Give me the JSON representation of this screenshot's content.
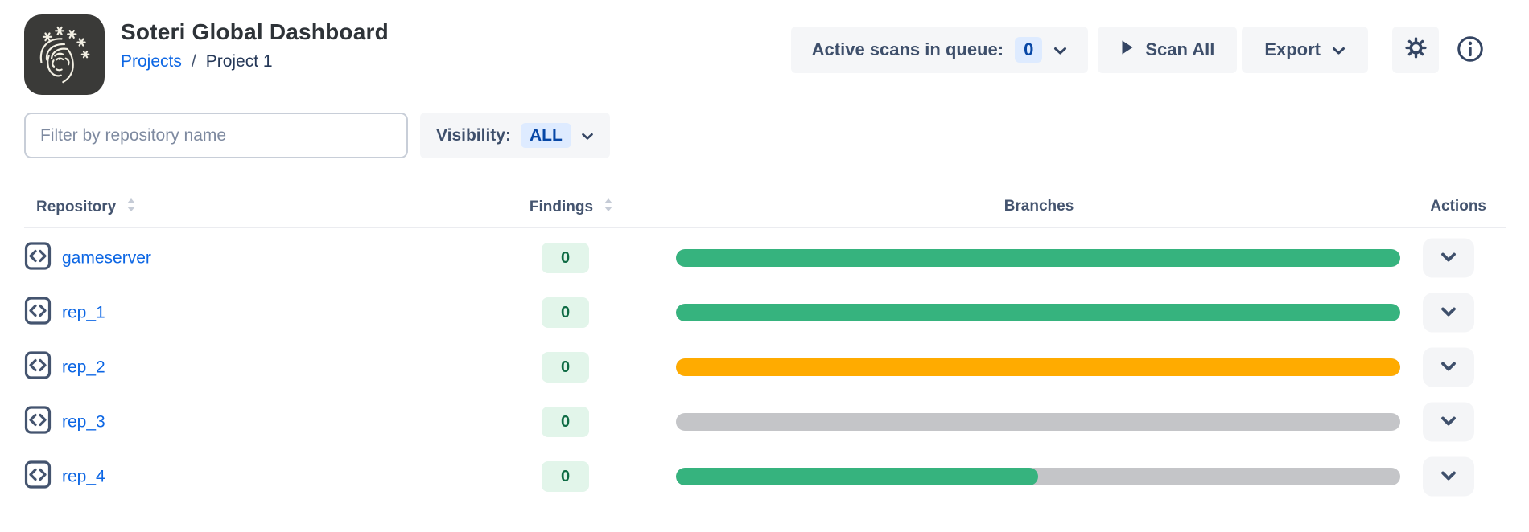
{
  "app": {
    "title": "Soteri Global Dashboard",
    "breadcrumb": {
      "link": "Projects",
      "separator": "/",
      "current": "Project 1"
    }
  },
  "toolbar": {
    "queue_label": "Active scans in queue:",
    "queue_count": "0",
    "scan_all_label": "Scan All",
    "export_label": "Export"
  },
  "filters": {
    "search_placeholder": "Filter by repository name",
    "visibility_label": "Visibility:",
    "visibility_value": "ALL"
  },
  "table": {
    "columns": {
      "repository": "Repository",
      "findings": "Findings",
      "branches": "Branches",
      "actions": "Actions"
    },
    "track_color": "#C4C5C8",
    "rows": [
      {
        "name": "gameserver",
        "findings": "0",
        "branch_fill_percent": 100,
        "branch_color": "#36B37E"
      },
      {
        "name": "rep_1",
        "findings": "0",
        "branch_fill_percent": 100,
        "branch_color": "#36B37E"
      },
      {
        "name": "rep_2",
        "findings": "0",
        "branch_fill_percent": 100,
        "branch_color": "#FFAB00"
      },
      {
        "name": "rep_3",
        "findings": "0",
        "branch_fill_percent": 0,
        "branch_color": "#C4C5C8"
      },
      {
        "name": "rep_4",
        "findings": "0",
        "branch_fill_percent": 50,
        "branch_color": "#36B37E"
      }
    ]
  },
  "icons": {
    "logo": "soteri-face-logo",
    "repo": "code-repository-icon",
    "sort": "sort-toggle-icon",
    "play": "play-icon",
    "chevron": "chevron-down-icon",
    "gear": "settings-gear-icon",
    "info": "info-circle-icon"
  },
  "colors": {
    "link_blue": "#0C66E4",
    "badge_blue_bg": "#DEEBFF",
    "badge_blue_text": "#0747A6",
    "findings_badge_bg": "#E2F5EA",
    "findings_badge_text": "#0E6B44",
    "branch_green": "#36B37E",
    "branch_amber": "#FFAB00",
    "branch_gray": "#C4C5C8",
    "pill_gray": "#F5F6F8",
    "slate_text": "#44546F"
  }
}
